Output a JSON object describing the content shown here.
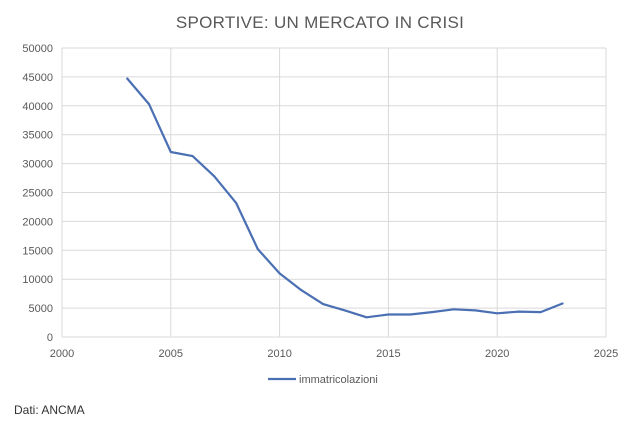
{
  "chart_data": {
    "type": "line",
    "title": "SPORTIVE: UN MERCATO IN CRISI",
    "xlabel": "",
    "ylabel": "",
    "xlim": [
      2000,
      2025
    ],
    "ylim": [
      0,
      50000
    ],
    "x_ticks": [
      2000,
      2005,
      2010,
      2015,
      2020,
      2025
    ],
    "y_ticks": [
      0,
      5000,
      10000,
      15000,
      20000,
      25000,
      30000,
      35000,
      40000,
      45000,
      50000
    ],
    "grid": true,
    "legend_position": "bottom",
    "series": [
      {
        "name": "immatricolazioni",
        "color": "#4a6fb3",
        "x": [
          2003,
          2004,
          2005,
          2006,
          2007,
          2008,
          2009,
          2010,
          2011,
          2012,
          2013,
          2014,
          2015,
          2016,
          2017,
          2018,
          2019,
          2020,
          2021,
          2022,
          2023
        ],
        "values": [
          44700,
          40300,
          32000,
          31300,
          27800,
          23200,
          15200,
          11000,
          8100,
          5700,
          4600,
          3400,
          3900,
          3900,
          4300,
          4800,
          4600,
          4100,
          4400,
          4300,
          5800
        ]
      }
    ]
  },
  "source_note": "Dati: ANCMA"
}
